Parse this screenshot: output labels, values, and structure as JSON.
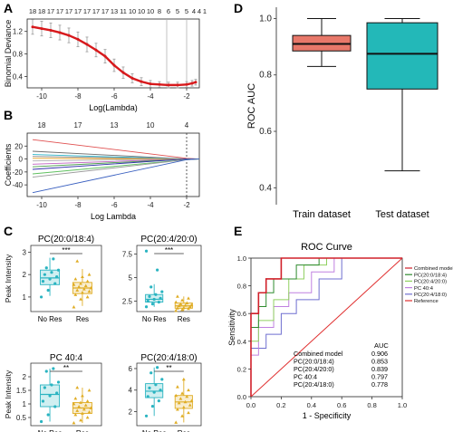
{
  "panels": {
    "A": "A",
    "B": "B",
    "C": "C",
    "D": "D",
    "E": "E"
  },
  "colors": {
    "lasso_curve": "#d7191c",
    "lasso_err": "#9a9a9a",
    "res_box": "#e0ad25",
    "nores_box": "#2ab4c1",
    "train_box": "#e8786a",
    "test_box": "#23b8b8",
    "no_sig": "#d8d8d8"
  },
  "chart_data": [
    {
      "id": "A",
      "type": "line",
      "xlabel": "Log(Lambda)",
      "ylabel": "Binomial Deviance",
      "xlim": [
        -10.8,
        -1.3
      ],
      "ylim": [
        0.2,
        1.42
      ],
      "xticks": [
        -10,
        -8,
        -6,
        -4,
        -2
      ],
      "yticks": [
        0.4,
        0.8,
        1.2
      ],
      "top_axis_labels": [
        "18",
        "18",
        "17",
        "17",
        "17",
        "17",
        "17",
        "17",
        "17",
        "13",
        "11",
        "10",
        "10",
        "10",
        "8",
        "6",
        "5",
        "5",
        "4",
        "4",
        "1"
      ],
      "top_axis_x": [
        -10.5,
        -10.0,
        -9.5,
        -9.0,
        -8.5,
        -8.0,
        -7.5,
        -7.0,
        -6.5,
        -6.0,
        -5.5,
        -5.0,
        -4.5,
        -4.0,
        -3.5,
        -3.0,
        -2.5,
        -2.0,
        -1.6,
        -1.3,
        -1.0
      ],
      "vlines": [
        -3.1,
        -2.0
      ],
      "x": [
        -10.5,
        -10,
        -9.5,
        -9,
        -8.5,
        -8,
        -7.5,
        -7,
        -6.5,
        -6,
        -5.5,
        -5,
        -4.5,
        -4,
        -3.5,
        -3,
        -2.5,
        -2,
        -1.7,
        -1.5
      ],
      "y": [
        1.28,
        1.25,
        1.22,
        1.18,
        1.13,
        1.06,
        0.97,
        0.87,
        0.76,
        0.6,
        0.47,
        0.37,
        0.31,
        0.27,
        0.26,
        0.25,
        0.25,
        0.26,
        0.28,
        0.3
      ],
      "err": [
        0.13,
        0.13,
        0.13,
        0.13,
        0.13,
        0.13,
        0.13,
        0.12,
        0.12,
        0.11,
        0.1,
        0.08,
        0.07,
        0.06,
        0.05,
        0.05,
        0.05,
        0.05,
        0.05,
        0.05
      ]
    },
    {
      "id": "B",
      "type": "line",
      "xlabel": "Log Lambda",
      "ylabel": "Coefficients",
      "xlim": [
        -10.8,
        -1.3
      ],
      "ylim": [
        -58,
        40
      ],
      "xticks": [
        -10,
        -8,
        -6,
        -4,
        -2
      ],
      "yticks": [
        -40,
        -20,
        0,
        20
      ],
      "top_axis_labels": [
        "18",
        "17",
        "13",
        "10",
        "4"
      ],
      "top_axis_x": [
        -10,
        -8,
        -6,
        -4,
        -2
      ],
      "vlines": [
        -2.0
      ],
      "x": [
        -10.5,
        -2
      ],
      "series": [
        {
          "color": "#e05050",
          "values": [
            30,
            1
          ]
        },
        {
          "color": "#6f6f6f",
          "values": [
            12,
            0
          ]
        },
        {
          "color": "#2bb5c9",
          "values": [
            7,
            0
          ]
        },
        {
          "color": "#8a8a8a",
          "values": [
            4,
            0
          ]
        },
        {
          "color": "#e8a020",
          "values": [
            1,
            0
          ]
        },
        {
          "color": "#b0b0b0",
          "values": [
            -3,
            0
          ]
        },
        {
          "color": "#c060c0",
          "values": [
            -8,
            0
          ]
        },
        {
          "color": "#4a9e4a",
          "values": [
            -12,
            0
          ]
        },
        {
          "color": "#3030aa",
          "values": [
            -16,
            0
          ]
        },
        {
          "color": "#60c060",
          "values": [
            -23,
            -1
          ]
        },
        {
          "color": "#999999",
          "values": [
            -28,
            -1
          ]
        },
        {
          "color": "#3a60c0",
          "values": [
            -52,
            -1
          ]
        }
      ]
    },
    {
      "id": "C1",
      "type": "box",
      "title": "PC(20:0/18:4)",
      "ylabel": "Peak Intensity",
      "categories": [
        "No Res",
        "Res"
      ],
      "significance": "***",
      "ylim": [
        0.35,
        3.3
      ],
      "yticks": [
        1,
        2,
        3
      ],
      "boxes": [
        {
          "q1": 1.55,
          "median": 1.85,
          "q3": 2.2,
          "lo": 1.05,
          "hi": 2.75
        },
        {
          "q1": 1.15,
          "median": 1.4,
          "q3": 1.65,
          "lo": 0.6,
          "hi": 2.25
        }
      ],
      "points": [
        [
          1.0,
          1.3,
          1.6,
          1.7,
          1.8,
          1.9,
          2.0,
          2.1,
          2.2,
          2.3,
          2.7
        ],
        [
          0.55,
          0.9,
          1.0,
          1.1,
          1.2,
          1.25,
          1.3,
          1.35,
          1.4,
          1.45,
          1.5,
          1.55,
          1.6,
          1.7,
          1.8,
          1.9,
          2.0,
          2.6
        ]
      ]
    },
    {
      "id": "C2",
      "type": "box",
      "title": "PC(20:4/20:0)",
      "ylabel": "",
      "categories": [
        "No Res",
        "Res"
      ],
      "significance": "***",
      "ylim": [
        1.4,
        8.4
      ],
      "yticks": [
        2.5,
        5.0,
        7.5
      ],
      "boxes": [
        {
          "q1": 2.4,
          "median": 2.7,
          "q3": 3.2,
          "lo": 1.9,
          "hi": 4.3
        },
        {
          "q1": 1.75,
          "median": 2.0,
          "q3": 2.3,
          "lo": 1.5,
          "hi": 3.0
        }
      ],
      "points": [
        [
          1.9,
          2.2,
          2.4,
          2.5,
          2.7,
          2.8,
          3.0,
          3.2,
          3.5,
          4.0,
          5.8,
          7.8
        ],
        [
          1.5,
          1.6,
          1.7,
          1.75,
          1.8,
          1.9,
          2.0,
          2.05,
          2.1,
          2.2,
          2.3,
          2.4,
          2.6,
          2.8,
          3.0
        ]
      ]
    },
    {
      "id": "C3",
      "type": "box",
      "title": "PC 40:4",
      "ylabel": "Peak Intensity",
      "categories": [
        "No Res",
        "Res"
      ],
      "significance": "**",
      "ylim": [
        0.2,
        2.5
      ],
      "yticks": [
        0.5,
        1.0,
        1.5,
        2.0
      ],
      "boxes": [
        {
          "q1": 0.9,
          "median": 1.35,
          "q3": 1.7,
          "lo": 0.35,
          "hi": 2.3
        },
        {
          "q1": 0.65,
          "median": 0.85,
          "q3": 1.05,
          "lo": 0.3,
          "hi": 1.6
        }
      ],
      "points": [
        [
          0.35,
          0.6,
          0.9,
          1.1,
          1.3,
          1.4,
          1.6,
          1.7,
          1.8,
          2.2,
          2.3
        ],
        [
          0.3,
          0.4,
          0.5,
          0.6,
          0.65,
          0.7,
          0.75,
          0.8,
          0.85,
          0.9,
          0.95,
          1.0,
          1.05,
          1.1,
          1.2,
          1.3,
          1.5,
          1.6
        ]
      ]
    },
    {
      "id": "C4",
      "type": "box",
      "title": "PC(20:4/18:0)",
      "ylabel": "",
      "categories": [
        "No Res",
        "Res"
      ],
      "significance": "**",
      "ylim": [
        0.7,
        6.5
      ],
      "yticks": [
        2,
        4,
        6
      ],
      "boxes": [
        {
          "q1": 3.3,
          "median": 3.9,
          "q3": 4.6,
          "lo": 1.6,
          "hi": 6.1
        },
        {
          "q1": 2.3,
          "median": 2.9,
          "q3": 3.5,
          "lo": 1.0,
          "hi": 5.0
        }
      ],
      "points": [
        [
          1.6,
          2.5,
          3.0,
          3.4,
          3.8,
          4.0,
          4.2,
          4.5,
          5.0,
          5.6,
          6.1
        ],
        [
          1.0,
          1.6,
          1.9,
          2.2,
          2.4,
          2.6,
          2.8,
          2.9,
          3.0,
          3.2,
          3.4,
          3.5,
          3.7,
          4.0,
          4.3,
          5.0
        ]
      ]
    },
    {
      "id": "D",
      "type": "box",
      "ylabel": "ROC AUC",
      "categories": [
        "Train dataset",
        "Test dataset"
      ],
      "ylim": [
        0.34,
        1.04
      ],
      "yticks": [
        0.4,
        0.6,
        0.8,
        1.0
      ],
      "boxes": [
        {
          "q1": 0.885,
          "median": 0.91,
          "q3": 0.94,
          "lo": 0.83,
          "hi": 1.0
        },
        {
          "q1": 0.75,
          "median": 0.875,
          "q3": 0.985,
          "lo": 0.46,
          "hi": 1.0
        }
      ]
    },
    {
      "id": "E",
      "type": "line",
      "title": "ROC Curve",
      "xlabel": "1 - Specificity",
      "ylabel": "Sensitivity",
      "xlim": [
        0,
        1
      ],
      "ylim": [
        0,
        1
      ],
      "xticks": [
        0.0,
        0.2,
        0.4,
        0.6,
        0.8,
        1.0
      ],
      "yticks": [
        0.0,
        0.2,
        0.4,
        0.6,
        0.8,
        1.0
      ],
      "series": [
        {
          "name": "Combined model",
          "color": "#d0202a",
          "auc": "0.906",
          "points": [
            [
              0,
              0
            ],
            [
              0,
              0.6
            ],
            [
              0.05,
              0.6
            ],
            [
              0.05,
              0.75
            ],
            [
              0.1,
              0.75
            ],
            [
              0.1,
              0.85
            ],
            [
              0.2,
              0.85
            ],
            [
              0.2,
              1.0
            ],
            [
              1,
              1
            ]
          ]
        },
        {
          "name": "PC(20:0/18:4)",
          "color": "#2e8b2e",
          "auc": "0.853",
          "points": [
            [
              0,
              0
            ],
            [
              0,
              0.5
            ],
            [
              0.05,
              0.5
            ],
            [
              0.05,
              0.65
            ],
            [
              0.1,
              0.65
            ],
            [
              0.1,
              0.75
            ],
            [
              0.15,
              0.75
            ],
            [
              0.15,
              0.85
            ],
            [
              0.3,
              0.85
            ],
            [
              0.3,
              0.95
            ],
            [
              0.45,
              0.95
            ],
            [
              0.45,
              1.0
            ],
            [
              1,
              1
            ]
          ]
        },
        {
          "name": "PC(20:4/20:0)",
          "color": "#90d060",
          "auc": "0.839",
          "points": [
            [
              0,
              0
            ],
            [
              0,
              0.4
            ],
            [
              0.05,
              0.4
            ],
            [
              0.05,
              0.55
            ],
            [
              0.15,
              0.55
            ],
            [
              0.15,
              0.7
            ],
            [
              0.25,
              0.7
            ],
            [
              0.25,
              0.85
            ],
            [
              0.35,
              0.85
            ],
            [
              0.35,
              0.95
            ],
            [
              0.5,
              0.95
            ],
            [
              0.5,
              1.0
            ],
            [
              1,
              1
            ]
          ]
        },
        {
          "name": "PC 40:4",
          "color": "#c080e0",
          "auc": "0.797",
          "points": [
            [
              0,
              0
            ],
            [
              0,
              0.3
            ],
            [
              0.05,
              0.3
            ],
            [
              0.05,
              0.5
            ],
            [
              0.15,
              0.5
            ],
            [
              0.15,
              0.65
            ],
            [
              0.25,
              0.65
            ],
            [
              0.25,
              0.75
            ],
            [
              0.4,
              0.75
            ],
            [
              0.4,
              0.9
            ],
            [
              0.55,
              0.9
            ],
            [
              0.55,
              1.0
            ],
            [
              1,
              1
            ]
          ]
        },
        {
          "name": "PC(20:4/18:0)",
          "color": "#6f6fd0",
          "auc": "0.778",
          "points": [
            [
              0,
              0
            ],
            [
              0,
              0.35
            ],
            [
              0.1,
              0.35
            ],
            [
              0.1,
              0.45
            ],
            [
              0.2,
              0.45
            ],
            [
              0.2,
              0.6
            ],
            [
              0.3,
              0.6
            ],
            [
              0.3,
              0.7
            ],
            [
              0.45,
              0.7
            ],
            [
              0.45,
              0.85
            ],
            [
              0.6,
              0.85
            ],
            [
              0.6,
              1.0
            ],
            [
              1,
              1
            ]
          ]
        },
        {
          "name": "Reference",
          "color": "#e03030",
          "points": [
            [
              0,
              0
            ],
            [
              1,
              1
            ]
          ]
        }
      ],
      "auc_header": "AUC"
    }
  ]
}
